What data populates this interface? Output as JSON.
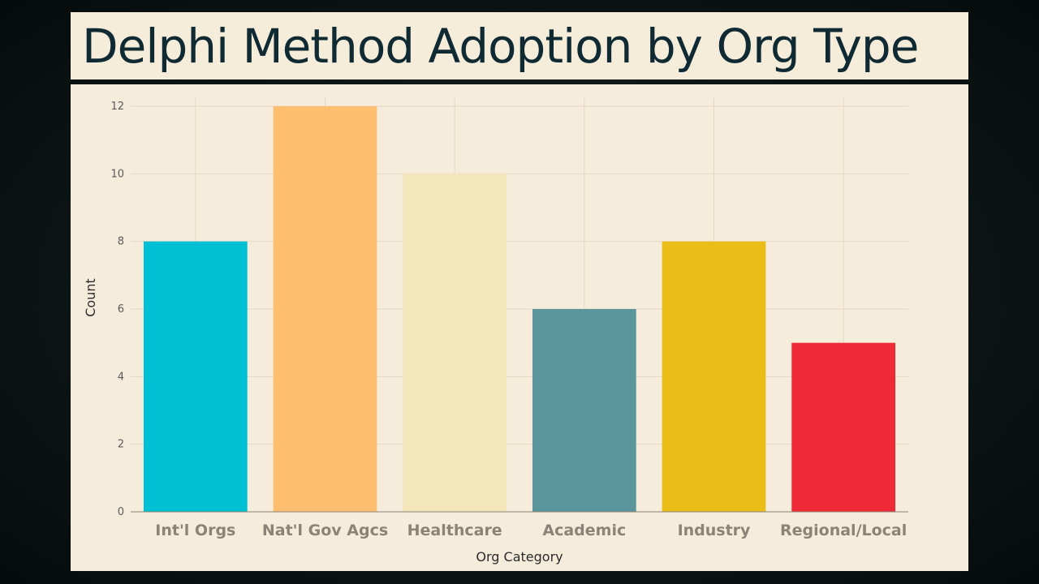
{
  "title": "Delphi Method Adoption by Org Type",
  "colors": {
    "banner_text": "#0f2a33",
    "panel_bg": "#f6ecdc"
  },
  "chart_data": {
    "type": "bar",
    "title": "Delphi Method Adoption by Org Type",
    "xlabel": "Org Category",
    "ylabel": "Count",
    "categories": [
      "Int'l Orgs",
      "Nat'l Gov Agcs",
      "Healthcare",
      "Academic",
      "Industry",
      "Regional/Local"
    ],
    "values": [
      8,
      12,
      10,
      6,
      8,
      5
    ],
    "bar_colors": [
      "#00c1d4",
      "#fdbf6f",
      "#f4e6bb",
      "#5b969d",
      "#eabd18",
      "#ee2a36"
    ],
    "ylim": [
      0,
      12
    ],
    "yticks": [
      0,
      2,
      4,
      6,
      8,
      10,
      12
    ],
    "grid": true,
    "legend": "none"
  }
}
